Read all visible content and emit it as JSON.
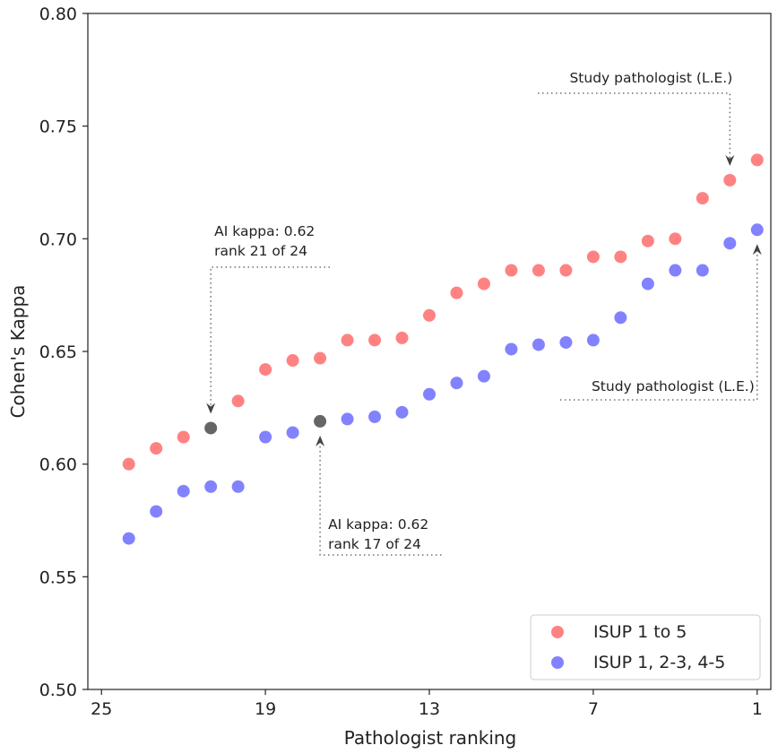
{
  "chart_data": {
    "type": "scatter",
    "xlabel": "Pathologist ranking",
    "ylabel": "Cohen's Kappa",
    "xlim": [
      25.5,
      0.5
    ],
    "ylim": [
      0.5,
      0.8
    ],
    "x_ticks": [
      25,
      19,
      13,
      7,
      1
    ],
    "x_tick_labels": [
      "25",
      "19",
      "13",
      "7",
      "1"
    ],
    "y_ticks": [
      0.5,
      0.55,
      0.6,
      0.65,
      0.7,
      0.75,
      0.8
    ],
    "y_tick_labels": [
      "0.50",
      "0.55",
      "0.60",
      "0.65",
      "0.70",
      "0.75",
      "0.80"
    ],
    "grid": false,
    "legend_position": "bottom-right",
    "series": [
      {
        "name": "ISUP 1 to 5",
        "color": "#ff4d4d",
        "x": [
          24,
          23,
          22,
          21,
          20,
          19,
          18,
          17,
          16,
          15,
          14,
          13,
          12,
          11,
          10,
          9,
          8,
          7,
          6,
          5,
          4,
          3,
          2,
          1
        ],
        "y": [
          0.6,
          0.607,
          0.612,
          0.616,
          0.628,
          0.642,
          0.646,
          0.647,
          0.655,
          0.655,
          0.656,
          0.666,
          0.676,
          0.68,
          0.686,
          0.686,
          0.686,
          0.692,
          0.692,
          0.699,
          0.7,
          0.718,
          0.726,
          0.735
        ],
        "highlight_index": 3
      },
      {
        "name": "ISUP 1, 2-3, 4-5",
        "color": "#4d4dff",
        "x": [
          24,
          23,
          22,
          21,
          20,
          19,
          18,
          17,
          16,
          15,
          14,
          13,
          12,
          11,
          10,
          9,
          8,
          7,
          6,
          5,
          4,
          3,
          2,
          1
        ],
        "y": [
          0.567,
          0.579,
          0.588,
          0.59,
          0.59,
          0.612,
          0.614,
          0.619,
          0.62,
          0.621,
          0.623,
          0.631,
          0.636,
          0.639,
          0.651,
          0.653,
          0.654,
          0.655,
          0.665,
          0.68,
          0.686,
          0.686,
          0.698,
          0.704
        ],
        "highlight_index": 7
      }
    ],
    "highlight_color": "#555555",
    "annotations": [
      {
        "lines": [
          "AI kappa: 0.62",
          "rank 21 of 24"
        ],
        "series": 0,
        "index": 3
      },
      {
        "lines": [
          "AI kappa: 0.62",
          "rank 17 of 24"
        ],
        "series": 1,
        "index": 7
      },
      {
        "lines": [
          "Study pathologist (L.E.)"
        ],
        "series": 0,
        "index": 22
      },
      {
        "lines": [
          "Study pathologist (L.E.)"
        ],
        "series": 1,
        "index": 23
      }
    ]
  }
}
